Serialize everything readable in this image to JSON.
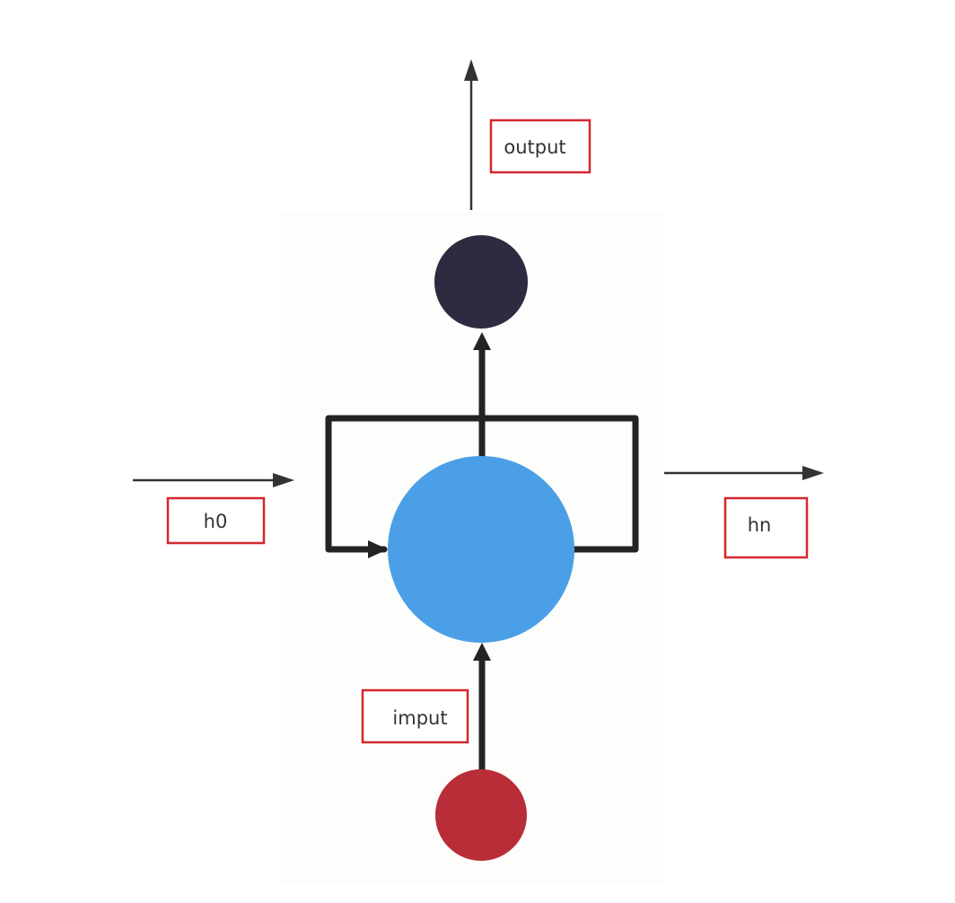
{
  "labels": {
    "output": "output",
    "h0": "h0",
    "hn": "hn",
    "input": "imput"
  },
  "nodes": {
    "output_node": {
      "color": "#2e2a40"
    },
    "hidden_node": {
      "color": "#4b9fe6"
    },
    "input_node": {
      "color": "#b82d37"
    }
  },
  "colors": {
    "label_border": "#d6262d",
    "arrow": "#333333",
    "panel_background": "#fdfdfb"
  }
}
